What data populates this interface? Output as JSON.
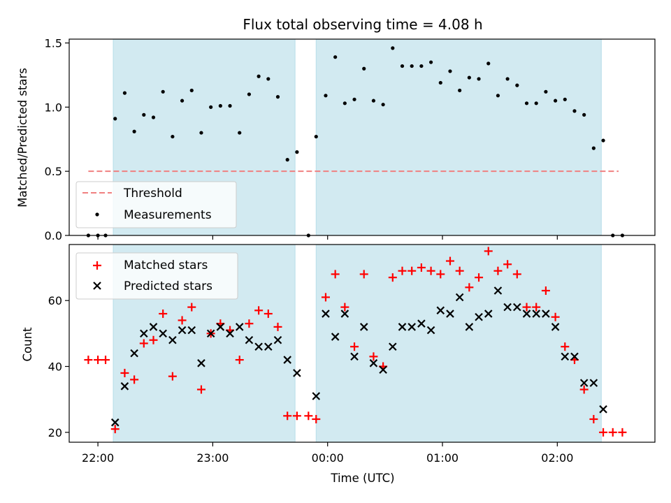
{
  "figure": {
    "title": "Flux total observing time = 4.08 h",
    "xlabel": "Time (UTC)",
    "x_tick_labels": [
      "22:00",
      "23:00",
      "00:00",
      "01:00",
      "02:00"
    ]
  },
  "colors": {
    "shade": "#add8e6",
    "threshold": "#f08080",
    "measurements": "#000000",
    "matched": "#ff0000",
    "predicted": "#000000"
  },
  "chart_data": [
    {
      "type": "scatter",
      "panel": "top",
      "ylabel": "Matched/Predicted stars",
      "ylim": [
        0,
        1.53
      ],
      "y_ticks": [
        "0.0",
        "0.5",
        "1.0",
        "1.5"
      ],
      "xlim": [
        "21:45",
        "02:51"
      ],
      "legend": {
        "position": "lower-left",
        "entries": [
          "Threshold",
          "Measurements"
        ]
      },
      "shaded_intervals": [
        [
          "22:08",
          "23:43"
        ],
        [
          "23:54",
          "02:23"
        ]
      ],
      "threshold": {
        "name": "Threshold",
        "y": 0.5,
        "x_range": [
          "21:55",
          "02:32"
        ]
      },
      "series": [
        {
          "name": "Measurements",
          "points": [
            [
              "21:55",
              0
            ],
            [
              "22:00",
              0
            ],
            [
              "22:04",
              0
            ],
            [
              "22:09",
              0.91
            ],
            [
              "22:14",
              1.11
            ],
            [
              "22:19",
              0.81
            ],
            [
              "22:24",
              0.94
            ],
            [
              "22:29",
              0.92
            ],
            [
              "22:34",
              1.12
            ],
            [
              "22:39",
              0.77
            ],
            [
              "22:44",
              1.05
            ],
            [
              "22:49",
              1.13
            ],
            [
              "22:54",
              0.8
            ],
            [
              "22:59",
              1.0
            ],
            [
              "23:04",
              1.01
            ],
            [
              "23:09",
              1.01
            ],
            [
              "23:14",
              0.8
            ],
            [
              "23:19",
              1.1
            ],
            [
              "23:24",
              1.24
            ],
            [
              "23:29",
              1.22
            ],
            [
              "23:34",
              1.08
            ],
            [
              "23:39",
              0.59
            ],
            [
              "23:44",
              0.65
            ],
            [
              "23:50",
              0
            ],
            [
              "23:54",
              0.77
            ],
            [
              "23:59",
              1.09
            ],
            [
              "00:04",
              1.39
            ],
            [
              "00:09",
              1.03
            ],
            [
              "00:14",
              1.06
            ],
            [
              "00:19",
              1.3
            ],
            [
              "00:24",
              1.05
            ],
            [
              "00:29",
              1.02
            ],
            [
              "00:34",
              1.46
            ],
            [
              "00:39",
              1.32
            ],
            [
              "00:44",
              1.32
            ],
            [
              "00:49",
              1.32
            ],
            [
              "00:54",
              1.35
            ],
            [
              "00:59",
              1.19
            ],
            [
              "01:04",
              1.28
            ],
            [
              "01:09",
              1.13
            ],
            [
              "01:14",
              1.23
            ],
            [
              "01:19",
              1.22
            ],
            [
              "01:24",
              1.34
            ],
            [
              "01:29",
              1.09
            ],
            [
              "01:34",
              1.22
            ],
            [
              "01:39",
              1.17
            ],
            [
              "01:44",
              1.03
            ],
            [
              "01:49",
              1.03
            ],
            [
              "01:54",
              1.12
            ],
            [
              "01:59",
              1.05
            ],
            [
              "02:04",
              1.06
            ],
            [
              "02:09",
              0.97
            ],
            [
              "02:14",
              0.94
            ],
            [
              "02:19",
              0.68
            ],
            [
              "02:24",
              0.74
            ],
            [
              "02:29",
              0
            ],
            [
              "02:34",
              0
            ]
          ]
        }
      ]
    },
    {
      "type": "scatter",
      "panel": "bottom",
      "ylabel": "Count",
      "ylim": [
        17,
        77
      ],
      "y_ticks": [
        "20",
        "40",
        "60"
      ],
      "xlim": [
        "21:45",
        "02:51"
      ],
      "legend": {
        "position": "upper-left",
        "entries": [
          "Matched stars",
          "Predicted stars"
        ]
      },
      "shaded_intervals": [
        [
          "22:08",
          "23:43"
        ],
        [
          "23:54",
          "02:23"
        ]
      ],
      "series": [
        {
          "name": "Matched stars",
          "marker": "plus",
          "points": [
            [
              "21:55",
              42
            ],
            [
              "22:00",
              42
            ],
            [
              "22:04",
              42
            ],
            [
              "22:09",
              21
            ],
            [
              "22:14",
              38
            ],
            [
              "22:19",
              36
            ],
            [
              "22:24",
              47
            ],
            [
              "22:29",
              48
            ],
            [
              "22:34",
              56
            ],
            [
              "22:39",
              37
            ],
            [
              "22:44",
              54
            ],
            [
              "22:49",
              58
            ],
            [
              "22:54",
              33
            ],
            [
              "22:59",
              50
            ],
            [
              "23:04",
              53
            ],
            [
              "23:09",
              51
            ],
            [
              "23:14",
              42
            ],
            [
              "23:19",
              53
            ],
            [
              "23:24",
              57
            ],
            [
              "23:29",
              56
            ],
            [
              "23:34",
              52
            ],
            [
              "23:39",
              25
            ],
            [
              "23:44",
              25
            ],
            [
              "23:50",
              25
            ],
            [
              "23:54",
              24
            ],
            [
              "23:59",
              61
            ],
            [
              "00:04",
              68
            ],
            [
              "00:09",
              58
            ],
            [
              "00:14",
              46
            ],
            [
              "00:19",
              68
            ],
            [
              "00:24",
              43
            ],
            [
              "00:29",
              40
            ],
            [
              "00:34",
              67
            ],
            [
              "00:39",
              69
            ],
            [
              "00:44",
              69
            ],
            [
              "00:49",
              70
            ],
            [
              "00:54",
              69
            ],
            [
              "00:59",
              68
            ],
            [
              "01:04",
              72
            ],
            [
              "01:09",
              69
            ],
            [
              "01:14",
              64
            ],
            [
              "01:19",
              67
            ],
            [
              "01:24",
              75
            ],
            [
              "01:29",
              69
            ],
            [
              "01:34",
              71
            ],
            [
              "01:39",
              68
            ],
            [
              "01:44",
              58
            ],
            [
              "01:49",
              58
            ],
            [
              "01:54",
              63
            ],
            [
              "01:59",
              55
            ],
            [
              "02:04",
              46
            ],
            [
              "02:09",
              42
            ],
            [
              "02:14",
              33
            ],
            [
              "02:19",
              24
            ],
            [
              "02:24",
              20
            ],
            [
              "02:29",
              20
            ],
            [
              "02:34",
              20
            ]
          ]
        },
        {
          "name": "Predicted stars",
          "marker": "x",
          "points": [
            [
              "22:09",
              23
            ],
            [
              "22:14",
              34
            ],
            [
              "22:19",
              44
            ],
            [
              "22:24",
              50
            ],
            [
              "22:29",
              52
            ],
            [
              "22:34",
              50
            ],
            [
              "22:39",
              48
            ],
            [
              "22:44",
              51
            ],
            [
              "22:49",
              51
            ],
            [
              "22:54",
              41
            ],
            [
              "22:59",
              50
            ],
            [
              "23:04",
              52
            ],
            [
              "23:09",
              50
            ],
            [
              "23:14",
              52
            ],
            [
              "23:19",
              48
            ],
            [
              "23:24",
              46
            ],
            [
              "23:29",
              46
            ],
            [
              "23:34",
              48
            ],
            [
              "23:39",
              42
            ],
            [
              "23:44",
              38
            ],
            [
              "23:54",
              31
            ],
            [
              "23:59",
              56
            ],
            [
              "00:04",
              49
            ],
            [
              "00:09",
              56
            ],
            [
              "00:14",
              43
            ],
            [
              "00:19",
              52
            ],
            [
              "00:24",
              41
            ],
            [
              "00:29",
              39
            ],
            [
              "00:34",
              46
            ],
            [
              "00:39",
              52
            ],
            [
              "00:44",
              52
            ],
            [
              "00:49",
              53
            ],
            [
              "00:54",
              51
            ],
            [
              "00:59",
              57
            ],
            [
              "01:04",
              56
            ],
            [
              "01:09",
              61
            ],
            [
              "01:14",
              52
            ],
            [
              "01:19",
              55
            ],
            [
              "01:24",
              56
            ],
            [
              "01:29",
              63
            ],
            [
              "01:34",
              58
            ],
            [
              "01:39",
              58
            ],
            [
              "01:44",
              56
            ],
            [
              "01:49",
              56
            ],
            [
              "01:54",
              56
            ],
            [
              "01:59",
              52
            ],
            [
              "02:04",
              43
            ],
            [
              "02:09",
              43
            ],
            [
              "02:14",
              35
            ],
            [
              "02:19",
              35
            ],
            [
              "02:24",
              27
            ]
          ]
        }
      ]
    }
  ]
}
